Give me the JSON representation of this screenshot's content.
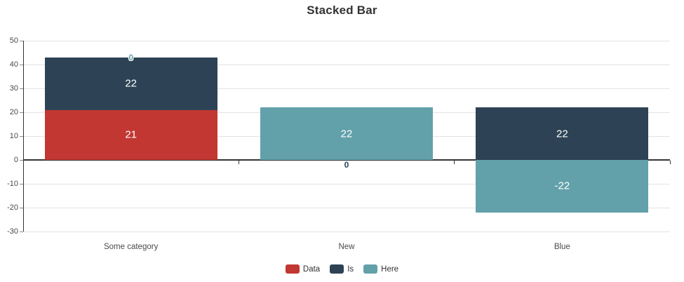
{
  "title": "Stacked Bar",
  "colors": {
    "series_red": "#c33732",
    "series_navy": "#2d4355",
    "series_teal": "#62a1aa",
    "axis": "#333333",
    "grid": "#e2e2e2",
    "tick_text": "#4a4a4a",
    "bar_label_text": "#ffffff",
    "background": "#ffffff"
  },
  "chart_data": {
    "type": "bar",
    "stacked": true,
    "title": "Stacked Bar",
    "categories": [
      "Some category",
      "New",
      "Blue"
    ],
    "series": [
      {
        "name": "Data",
        "color": "#c33732",
        "values": [
          21,
          0,
          0
        ]
      },
      {
        "name": "Is",
        "color": "#2d4355",
        "values": [
          22,
          0,
          22
        ]
      },
      {
        "name": "Here",
        "color": "#62a1aa",
        "values": [
          0,
          22,
          -22
        ]
      }
    ],
    "y_ticks": [
      50,
      40,
      30,
      20,
      10,
      0,
      -10,
      -20,
      -30
    ],
    "ylim": [
      -30,
      50
    ],
    "xlabel": "",
    "ylabel": "",
    "grid": true,
    "legend_position": "bottom",
    "bar_value_labels": true,
    "zero_annotations": [
      {
        "category_index": 0,
        "y": 43,
        "text": "0",
        "color": "#62a1aa",
        "dy": 0
      },
      {
        "category_index": 1,
        "y": 0,
        "text": "0",
        "color": "#2d4355",
        "dy": 7
      }
    ]
  },
  "legend": {
    "items": [
      {
        "label": "Data",
        "color": "#c33732"
      },
      {
        "label": "Is",
        "color": "#2d4355"
      },
      {
        "label": "Here",
        "color": "#62a1aa"
      }
    ]
  }
}
